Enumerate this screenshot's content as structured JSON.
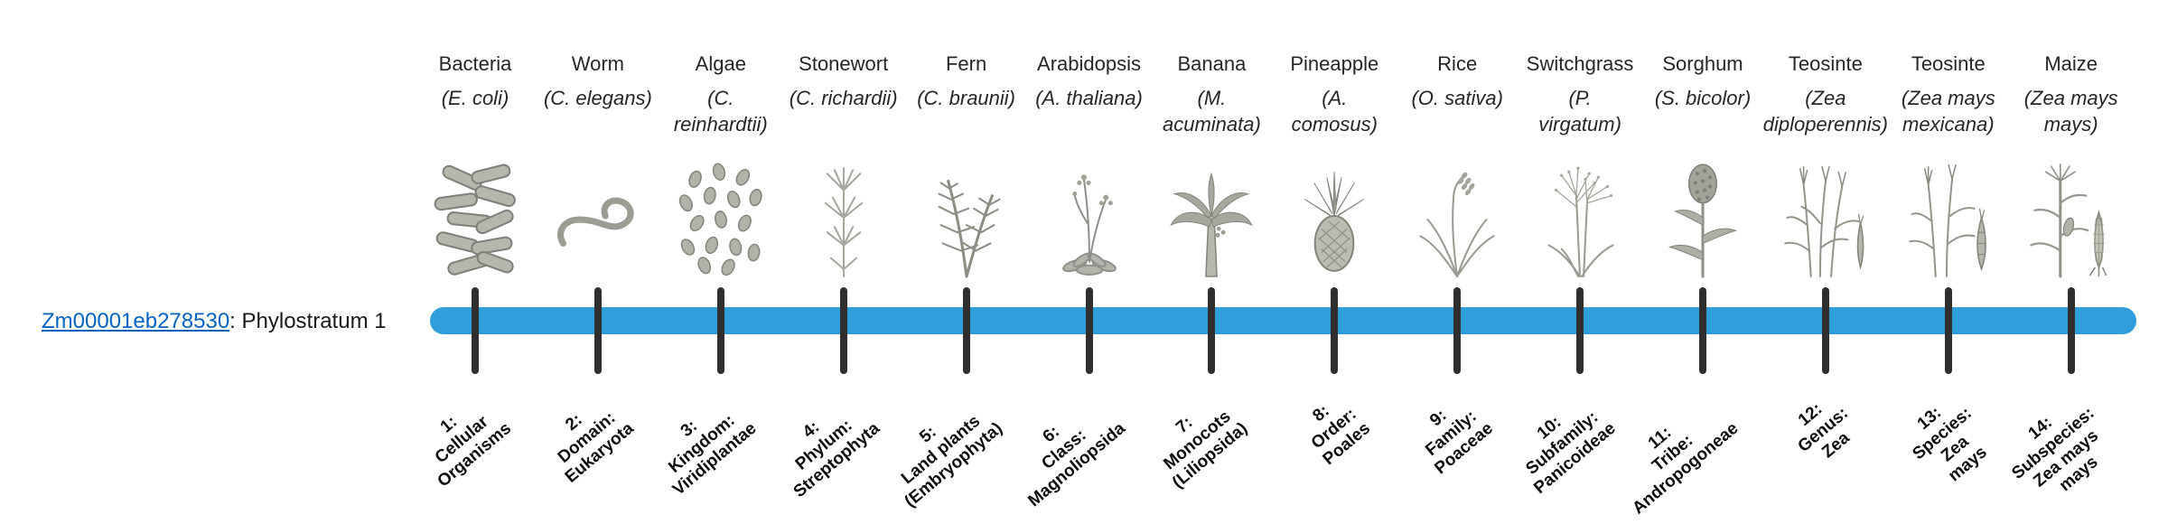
{
  "gene": {
    "id": "Zm00001eb278530",
    "suffix": ": Phylostratum 1",
    "link_color": "#0563C1"
  },
  "timeline": {
    "bar_color": "#2F9EDB",
    "tick_color": "#2f2f2f"
  },
  "columns": [
    {
      "common": "Bacteria",
      "sci_lines": [
        "(E. coli)"
      ],
      "icon": "bacteria-icon",
      "strat_lines": [
        "1:",
        "Cellular",
        "Organisms"
      ]
    },
    {
      "common": "Worm",
      "sci_lines": [
        "(C. elegans)"
      ],
      "icon": "worm-icon",
      "strat_lines": [
        "2:",
        "Domain:",
        "Eukaryota"
      ]
    },
    {
      "common": "Algae",
      "sci_lines": [
        "(C.",
        "reinhardtii)"
      ],
      "icon": "algae-icon",
      "strat_lines": [
        "3:",
        "Kingdom:",
        "Viridiplantae"
      ]
    },
    {
      "common": "Stonewort",
      "sci_lines": [
        "(C. richardii)"
      ],
      "icon": "stonewort-icon",
      "strat_lines": [
        "4:",
        "Phylum:",
        "Streptophyta"
      ]
    },
    {
      "common": "Fern",
      "sci_lines": [
        "(C. braunii)"
      ],
      "icon": "fern-icon",
      "strat_lines": [
        "5:",
        "Land plants",
        "(Embryophyta)"
      ]
    },
    {
      "common": "Arabidopsis",
      "sci_lines": [
        "(A. thaliana)"
      ],
      "icon": "arabidopsis-icon",
      "strat_lines": [
        "6:",
        "Class:",
        "Magnoliopsida"
      ]
    },
    {
      "common": "Banana",
      "sci_lines": [
        "(M.",
        "acuminata)"
      ],
      "icon": "banana-icon",
      "strat_lines": [
        "7:",
        "Monocots",
        "(Liliopsida)"
      ]
    },
    {
      "common": "Pineapple",
      "sci_lines": [
        "(A.",
        "comosus)"
      ],
      "icon": "pineapple-icon",
      "strat_lines": [
        "8:",
        "Order:",
        "Poales"
      ]
    },
    {
      "common": "Rice",
      "sci_lines": [
        "(O. sativa)"
      ],
      "icon": "rice-icon",
      "strat_lines": [
        "9:",
        "Family:",
        "Poaceae"
      ]
    },
    {
      "common": "Switchgrass",
      "sci_lines": [
        "(P.",
        "virgatum)"
      ],
      "icon": "switchgrass-icon",
      "strat_lines": [
        "10:",
        "Subfamily:",
        "Panicoideae"
      ]
    },
    {
      "common": "Sorghum",
      "sci_lines": [
        "(S. bicolor)"
      ],
      "icon": "sorghum-icon",
      "strat_lines": [
        "11:",
        "Tribe:",
        "Andropogoneae"
      ]
    },
    {
      "common": "Teosinte",
      "sci_lines": [
        "(Zea",
        "diploperennis)"
      ],
      "icon": "teosinte-icon",
      "strat_lines": [
        "12:",
        "Genus:",
        "Zea"
      ]
    },
    {
      "common": "Teosinte",
      "sci_lines": [
        "(Zea mays",
        "mexicana)"
      ],
      "icon": "teosinte2-icon",
      "strat_lines": [
        "13:",
        "Species:",
        "Zea",
        "mays"
      ]
    },
    {
      "common": "Maize",
      "sci_lines": [
        "(Zea mays",
        "mays)"
      ],
      "icon": "maize-icon",
      "strat_lines": [
        "14:",
        "Subspecies:",
        "Zea mays",
        "mays"
      ]
    }
  ]
}
